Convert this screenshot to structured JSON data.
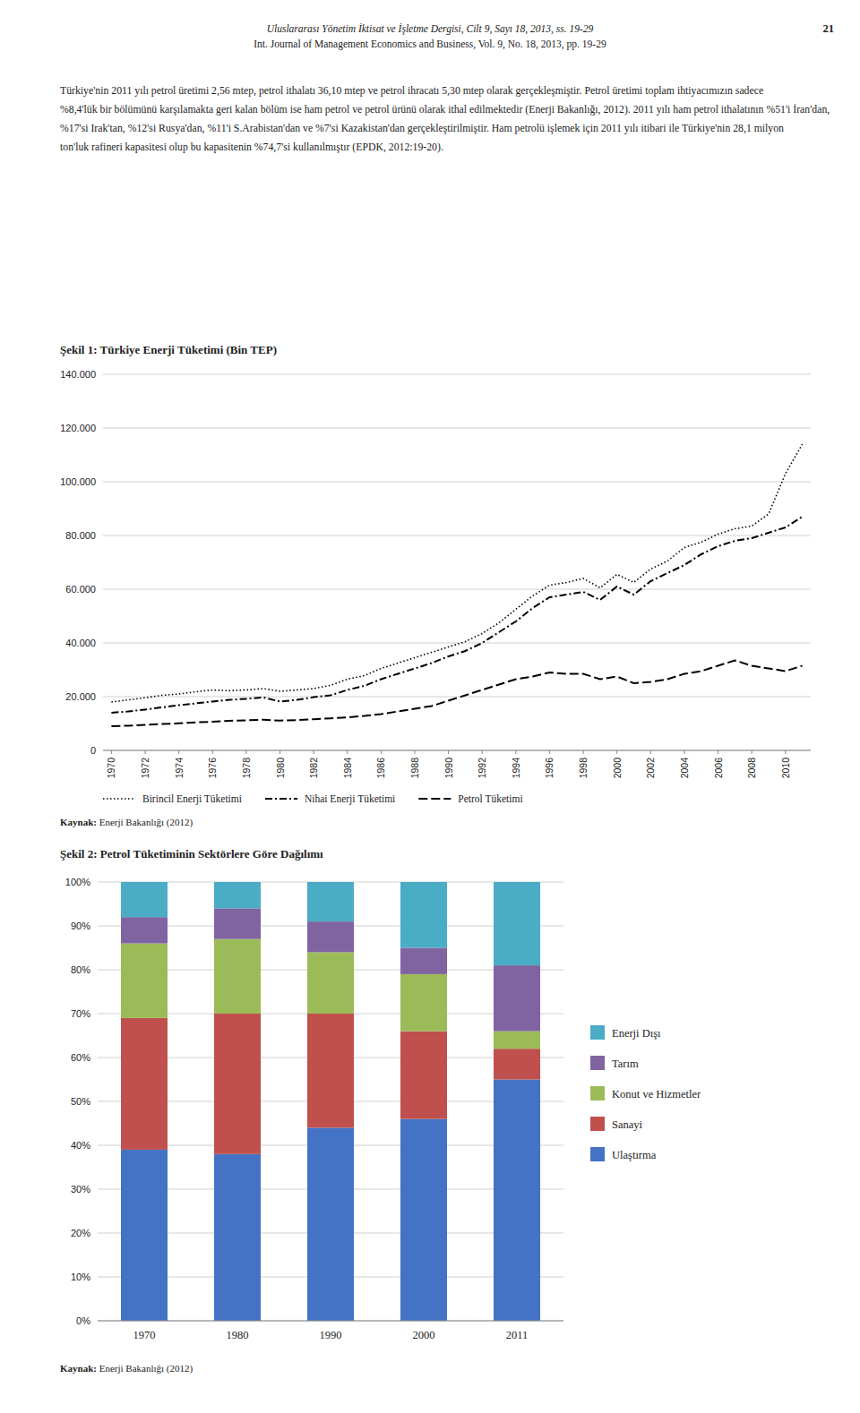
{
  "page": {
    "header_line1": "Uluslararası Yönetim İktisat ve İşletme Dergisi, Cilt 9, Sayı 18, 2013, ss. 19-29",
    "header_line2": "Int. Journal of Management Economics and Business, Vol. 9, No. 18, 2013, pp. 19-29",
    "page_number": "21",
    "paragraph": [
      "Türkiye'nin 2011 yılı petrol üretimi 2,56 mtep, petrol ithalatı 36,10 mtep ve petrol ihracatı 5,30 mtep olarak gerçekleşmiştir. Petrol üretimi toplam ihtiyacımızın sadece",
      "%8,4'lük bir bölümünü karşılamakta geri kalan bölüm ise ham petrol ve petrol ürünü olarak ithal edilmektedir (Enerji Bakanlığı, 2012). 2011 yılı ham petrol ithalatının %51'i İran'dan,",
      "%17'si Irak'tan, %12'si Rusya'dan, %11'i S.Arabistan'dan ve %7'si Kazakistan'dan gerçekleştirilmiştir. Ham petrolü işlemek için 2011 yılı itibari ile Türkiye'nin 28,1 milyon",
      "ton'luk rafineri kapasitesi olup bu kapasitenin %74,7'si kullanılmıştır (EPDK, 2012:19-20)."
    ]
  },
  "chart_data": [
    {
      "type": "line",
      "title": "Şekil 1: Türkiye Enerji Tüketimi (Bin TEP)",
      "source": "Kaynak: Enerji Bakanlığı (2012)",
      "x": [
        1970,
        1971,
        1972,
        1973,
        1974,
        1975,
        1976,
        1977,
        1978,
        1979,
        1980,
        1981,
        1982,
        1983,
        1984,
        1985,
        1986,
        1987,
        1988,
        1989,
        1990,
        1991,
        1992,
        1993,
        1994,
        1995,
        1996,
        1997,
        1998,
        1999,
        2000,
        2001,
        2002,
        2003,
        2004,
        2005,
        2006,
        2007,
        2008,
        2009,
        2010,
        2011
      ],
      "series": [
        {
          "name": "Birincil Enerji Tüketimi",
          "color": "#000000",
          "line_style": "dotted",
          "values": [
            18000,
            18800,
            19600,
            20500,
            21000,
            21800,
            22500,
            22200,
            22500,
            23000,
            22000,
            22500,
            23000,
            24200,
            26500,
            27800,
            30500,
            32500,
            34500,
            36500,
            38500,
            40500,
            43500,
            47500,
            52500,
            57500,
            61500,
            62500,
            64000,
            60500,
            65500,
            62500,
            67500,
            70500,
            75500,
            77500,
            80500,
            82500,
            83500,
            88000,
            103000,
            114000
          ]
        },
        {
          "name": "Nihai Enerji Tüketimi",
          "color": "#000000",
          "line_style": "dashdot",
          "values": [
            14000,
            14500,
            15200,
            16000,
            16800,
            17500,
            18200,
            18800,
            19200,
            19700,
            18200,
            18800,
            19800,
            20500,
            22500,
            24000,
            26500,
            28500,
            30500,
            32500,
            35000,
            37000,
            40000,
            44000,
            48000,
            53000,
            57000,
            58000,
            59000,
            56000,
            61000,
            58000,
            63000,
            66000,
            69000,
            73000,
            76000,
            78000,
            79000,
            81000,
            83000,
            87000
          ]
        },
        {
          "name": "Petrol Tüketimi",
          "color": "#000000",
          "line_style": "dashed",
          "values": [
            9000,
            9200,
            9500,
            9800,
            10100,
            10400,
            10700,
            11000,
            11200,
            11400,
            11100,
            11300,
            11600,
            11900,
            12300,
            12800,
            13500,
            14500,
            15500,
            16500,
            18500,
            20500,
            22500,
            24500,
            26500,
            27500,
            29000,
            28500,
            28500,
            26500,
            27500,
            25000,
            25500,
            26500,
            28500,
            29500,
            31500,
            33500,
            31500,
            30500,
            29500,
            31500
          ]
        }
      ],
      "xlim": [
        1969.5,
        2011.5
      ],
      "xticks": [
        1970,
        1972,
        1974,
        1976,
        1978,
        1980,
        1982,
        1984,
        1986,
        1988,
        1990,
        1992,
        1994,
        1996,
        1998,
        2000,
        2002,
        2004,
        2006,
        2008,
        2010
      ],
      "ylim": [
        0,
        140000
      ],
      "yticks": [
        0,
        {
          "value": 20000,
          "label": "20.000"
        },
        {
          "value": 40000,
          "label": "40.000"
        },
        {
          "value": 60000,
          "label": "60.000"
        },
        {
          "value": 80000,
          "label": "80.000"
        },
        {
          "value": 100000,
          "label": "100.000"
        },
        {
          "value": 120000,
          "label": "120.000"
        },
        {
          "value": 140000,
          "label": "140.000"
        }
      ],
      "grid": true,
      "legend": "bottom"
    },
    {
      "type": "bar",
      "stacked": true,
      "title": "Şekil 2: Petrol Tüketiminin Sektörlere Göre Dağılımı",
      "source": "Kaynak: Enerji Bakanlığı (2012)",
      "categories": [
        "1970",
        "1980",
        "1990",
        "2000",
        "2011"
      ],
      "series": [
        {
          "name": "Ulaştırma",
          "color": "#4472C4",
          "values": [
            0.39,
            0.38,
            0.44,
            0.46,
            0.55
          ]
        },
        {
          "name": "Sanayi",
          "color": "#C0504D",
          "values": [
            0.3,
            0.32,
            0.26,
            0.2,
            0.07
          ]
        },
        {
          "name": "Konut ve Hizmetler",
          "color": "#9BBB59",
          "values": [
            0.17,
            0.17,
            0.14,
            0.13,
            0.04
          ]
        },
        {
          "name": "Tarım",
          "color": "#8064A2",
          "values": [
            0.06,
            0.07,
            0.07,
            0.06,
            0.15
          ]
        },
        {
          "name": "Enerji Dışı",
          "color": "#4BACC6",
          "values": [
            0.08,
            0.06,
            0.09,
            0.15,
            0.19
          ]
        }
      ],
      "ylim": [
        0,
        1
      ],
      "yticks": [
        {
          "value": 0,
          "label": "0%"
        },
        {
          "value": 0.1,
          "label": "10%"
        },
        {
          "value": 0.2,
          "label": "20%"
        },
        {
          "value": 0.3,
          "label": "30%"
        },
        {
          "value": 0.4,
          "label": "40%"
        },
        {
          "value": 0.5,
          "label": "50%"
        },
        {
          "value": 0.6,
          "label": "60%"
        },
        {
          "value": 0.7,
          "label": "70%"
        },
        {
          "value": 0.8,
          "label": "80%"
        },
        {
          "value": 0.9,
          "label": "90%"
        },
        {
          "value": 1,
          "label": "100%"
        }
      ],
      "grid": true,
      "legend": "right"
    }
  ]
}
